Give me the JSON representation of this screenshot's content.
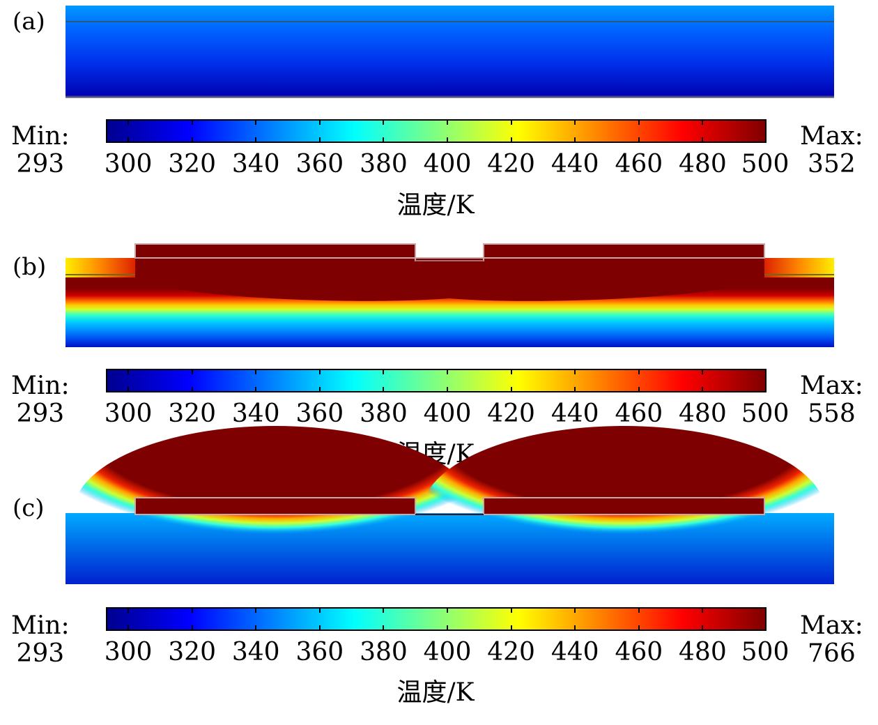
{
  "panels": [
    {
      "id": "a",
      "label": "(a)",
      "min_label": "Min:",
      "min_value": "293",
      "max_label": "Max:",
      "max_value": "352",
      "colorbar_title": "温度/K"
    },
    {
      "id": "b",
      "label": "(b)",
      "min_label": "Min:",
      "min_value": "293",
      "max_label": "Max:",
      "max_value": "558",
      "colorbar_title": "温度/K"
    },
    {
      "id": "c",
      "label": "(c)",
      "min_label": "Min:",
      "min_value": "293",
      "max_label": "Max:",
      "max_value": "766",
      "colorbar_title": "温度/K"
    }
  ],
  "chart_data": [
    {
      "type": "heatmap",
      "panel": "(a)",
      "colorbar_ticks": [
        300,
        320,
        340,
        360,
        380,
        400,
        420,
        440,
        460,
        480,
        500
      ],
      "colorbar_range": [
        293,
        500
      ],
      "xlabel": "",
      "ylabel": "",
      "title": "",
      "min": 293,
      "max": 352,
      "colormap": "jet"
    },
    {
      "type": "heatmap",
      "panel": "(b)",
      "colorbar_ticks": [
        300,
        320,
        340,
        360,
        380,
        400,
        420,
        440,
        460,
        480,
        500
      ],
      "colorbar_range": [
        293,
        500
      ],
      "xlabel": "",
      "ylabel": "",
      "title": "",
      "min": 293,
      "max": 558,
      "colormap": "jet"
    },
    {
      "type": "heatmap",
      "panel": "(c)",
      "colorbar_ticks": [
        300,
        320,
        340,
        360,
        380,
        400,
        420,
        440,
        460,
        480,
        500
      ],
      "colorbar_range": [
        293,
        500
      ],
      "xlabel": "",
      "ylabel": "",
      "title": "",
      "min": 293,
      "max": 766,
      "colormap": "jet"
    }
  ],
  "colors": {
    "dark_red": "#7f0000",
    "deep_blue": "#0000c8",
    "cyan": "#00ffff"
  }
}
